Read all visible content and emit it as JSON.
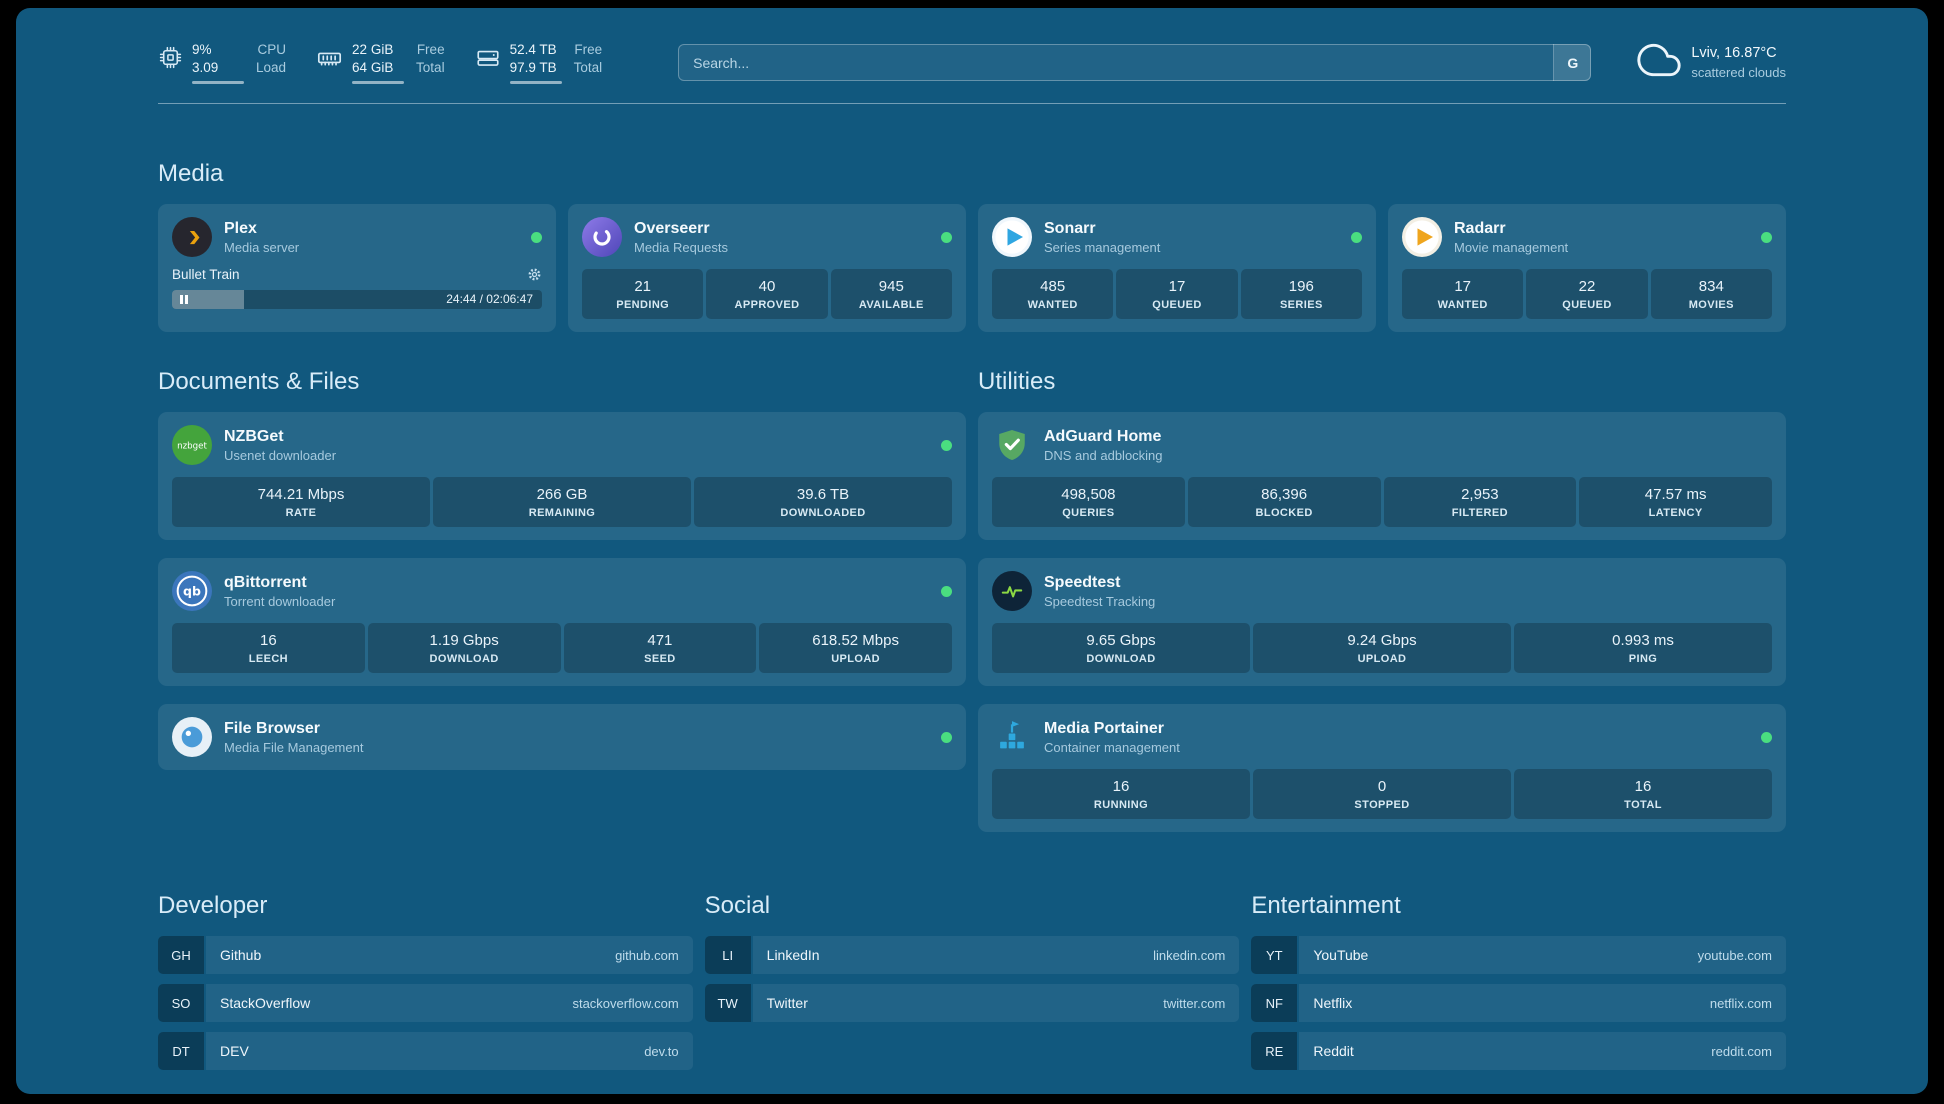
{
  "colors": {
    "page_background": "#11587E",
    "status_online": "#4ADE80",
    "accent_green": "#4ADE80"
  },
  "topbar": {
    "resources": [
      {
        "icon": "cpu-icon",
        "values": [
          "9%",
          "3.09"
        ],
        "labels": [
          "CPU",
          "Load"
        ]
      },
      {
        "icon": "memory-icon",
        "values": [
          "22 GiB",
          "64 GiB"
        ],
        "labels": [
          "Free",
          "Total"
        ]
      },
      {
        "icon": "disk-icon",
        "values": [
          "52.4 TB",
          "97.9 TB"
        ],
        "labels": [
          "Free",
          "Total"
        ]
      }
    ],
    "search": {
      "placeholder": "Search...",
      "provider": "G"
    },
    "weather": {
      "location": "Lviv, 16.87°C",
      "condition": "scattered clouds"
    }
  },
  "sections": {
    "media": {
      "title": "Media",
      "services": [
        {
          "name": "Plex",
          "subtitle": "Media server",
          "status": "online",
          "now_playing": {
            "title": "Bullet Train",
            "time_display": "24:44 / 02:06:47",
            "progress_percent": 19.5
          }
        },
        {
          "name": "Overseerr",
          "subtitle": "Media Requests",
          "status": "online",
          "stats": [
            {
              "value": "21",
              "label": "PENDING"
            },
            {
              "value": "40",
              "label": "APPROVED"
            },
            {
              "value": "945",
              "label": "AVAILABLE"
            }
          ]
        },
        {
          "name": "Sonarr",
          "subtitle": "Series management",
          "status": "online",
          "stats": [
            {
              "value": "485",
              "label": "WANTED"
            },
            {
              "value": "17",
              "label": "QUEUED"
            },
            {
              "value": "196",
              "label": "SERIES"
            }
          ]
        },
        {
          "name": "Radarr",
          "subtitle": "Movie management",
          "status": "online",
          "stats": [
            {
              "value": "17",
              "label": "WANTED"
            },
            {
              "value": "22",
              "label": "QUEUED"
            },
            {
              "value": "834",
              "label": "MOVIES"
            }
          ]
        }
      ]
    },
    "documents": {
      "title": "Documents & Files",
      "services": [
        {
          "name": "NZBGet",
          "subtitle": "Usenet downloader",
          "status": "online",
          "icon_text": "nzbget",
          "stats": [
            {
              "value": "744.21 Mbps",
              "label": "RATE"
            },
            {
              "value": "266 GB",
              "label": "REMAINING"
            },
            {
              "value": "39.6 TB",
              "label": "DOWNLOADED"
            }
          ]
        },
        {
          "name": "qBittorrent",
          "subtitle": "Torrent downloader",
          "status": "online",
          "icon_text": "qb",
          "stats": [
            {
              "value": "16",
              "label": "LEECH"
            },
            {
              "value": "1.19 Gbps",
              "label": "DOWNLOAD"
            },
            {
              "value": "471",
              "label": "SEED"
            },
            {
              "value": "618.52 Mbps",
              "label": "UPLOAD"
            }
          ]
        },
        {
          "name": "File Browser",
          "subtitle": "Media File Management",
          "status": "online"
        }
      ]
    },
    "utilities": {
      "title": "Utilities",
      "services": [
        {
          "name": "AdGuard Home",
          "subtitle": "DNS and adblocking",
          "stats": [
            {
              "value": "498,508",
              "label": "QUERIES"
            },
            {
              "value": "86,396",
              "label": "BLOCKED"
            },
            {
              "value": "2,953",
              "label": "FILTERED"
            },
            {
              "value": "47.57 ms",
              "label": "LATENCY"
            }
          ]
        },
        {
          "name": "Speedtest",
          "subtitle": "Speedtest Tracking",
          "stats": [
            {
              "value": "9.65 Gbps",
              "label": "DOWNLOAD"
            },
            {
              "value": "9.24 Gbps",
              "label": "UPLOAD"
            },
            {
              "value": "0.993 ms",
              "label": "PING"
            }
          ]
        },
        {
          "name": "Media Portainer",
          "subtitle": "Container management",
          "status": "online",
          "stats": [
            {
              "value": "16",
              "label": "RUNNING"
            },
            {
              "value": "0",
              "label": "STOPPED"
            },
            {
              "value": "16",
              "label": "TOTAL"
            }
          ]
        }
      ]
    }
  },
  "bookmarks": {
    "developer": {
      "title": "Developer",
      "items": [
        {
          "abbr": "GH",
          "name": "Github",
          "domain": "github.com"
        },
        {
          "abbr": "SO",
          "name": "StackOverflow",
          "domain": "stackoverflow.com"
        },
        {
          "abbr": "DT",
          "name": "DEV",
          "domain": "dev.to"
        }
      ]
    },
    "social": {
      "title": "Social",
      "items": [
        {
          "abbr": "LI",
          "name": "LinkedIn",
          "domain": "linkedin.com"
        },
        {
          "abbr": "TW",
          "name": "Twitter",
          "domain": "twitter.com"
        }
      ]
    },
    "entertainment": {
      "title": "Entertainment",
      "items": [
        {
          "abbr": "YT",
          "name": "YouTube",
          "domain": "youtube.com"
        },
        {
          "abbr": "NF",
          "name": "Netflix",
          "domain": "netflix.com"
        },
        {
          "abbr": "RE",
          "name": "Reddit",
          "domain": "reddit.com"
        }
      ]
    }
  }
}
